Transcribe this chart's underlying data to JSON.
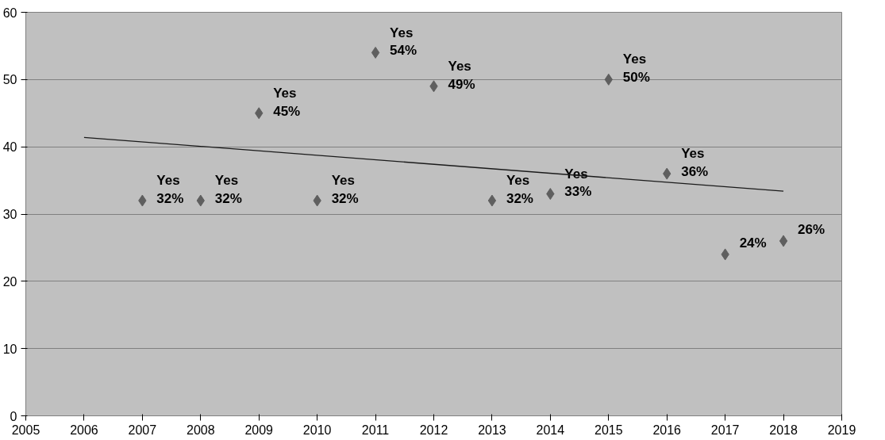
{
  "chart_data": {
    "type": "scatter",
    "xlim": [
      2005,
      2019
    ],
    "xticks": [
      2005,
      2006,
      2007,
      2008,
      2009,
      2010,
      2011,
      2012,
      2013,
      2014,
      2015,
      2016,
      2017,
      2018,
      2019
    ],
    "ylim": [
      0,
      60
    ],
    "yticks": [
      0,
      10,
      20,
      30,
      40,
      50,
      60
    ],
    "grid": "y",
    "series": [
      {
        "marker": "diamond",
        "color": "#5f5f5f",
        "x": [
          2007,
          2008,
          2009,
          2010,
          2011,
          2012,
          2013,
          2014,
          2015,
          2016,
          2017,
          2018
        ],
        "values": [
          32,
          32,
          45,
          32,
          54,
          49,
          32,
          33,
          50,
          36,
          24,
          26
        ],
        "value_labels": [
          "Yes\n32%",
          "Yes\n32%",
          "Yes\n45%",
          "Yes\n32%",
          "Yes\n54%",
          "Yes\n49%",
          "Yes\n32%",
          "Yes\n33%",
          "Yes\n50%",
          "Yes\n36%",
          "24%",
          "26%"
        ]
      },
      {
        "type": "line",
        "marker": "none",
        "line_style": "solid",
        "color": "#1a1a1a",
        "x": [
          2006,
          2018
        ],
        "values": [
          41.4,
          33.4
        ]
      }
    ]
  }
}
